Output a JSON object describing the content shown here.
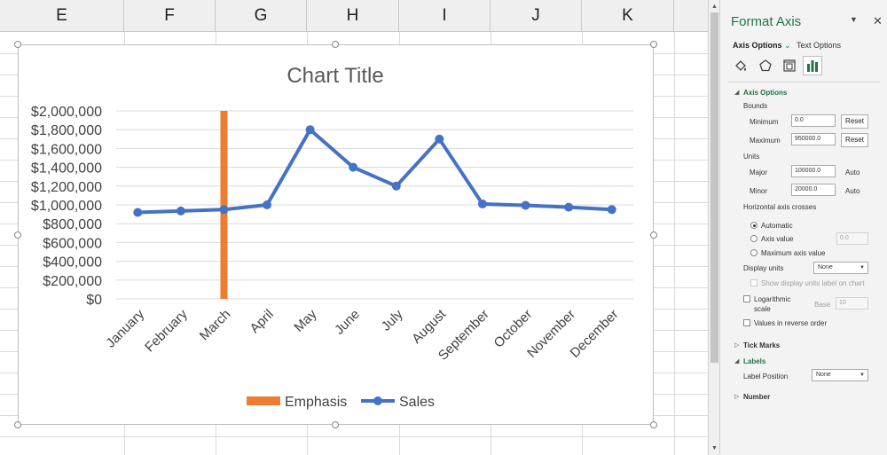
{
  "columns": [
    "E",
    "F",
    "G",
    "H",
    "I",
    "J",
    "K"
  ],
  "chart_data": {
    "type": "line",
    "title": "Chart Title",
    "categories": [
      "January",
      "February",
      "March",
      "April",
      "May",
      "June",
      "July",
      "August",
      "September",
      "October",
      "November",
      "December"
    ],
    "series": [
      {
        "name": "Sales",
        "kind": "line",
        "color": "#4472c4",
        "values": [
          920000,
          935000,
          950000,
          1000000,
          1800000,
          1400000,
          1200000,
          1700000,
          1010000,
          995000,
          975000,
          950000
        ]
      },
      {
        "name": "Emphasis",
        "kind": "bar",
        "color": "#ed7d31",
        "values": [
          0,
          0,
          2000000,
          0,
          0,
          0,
          0,
          0,
          0,
          0,
          0,
          0
        ]
      }
    ],
    "ylim": [
      0,
      2000000
    ],
    "y_tick_labels": [
      "$2,000,000",
      "$1,800,000",
      "$1,600,000",
      "$1,400,000",
      "$1,200,000",
      "$1,000,000",
      "$800,000",
      "$600,000",
      "$400,000",
      "$200,000",
      "$0"
    ],
    "legend": [
      "Emphasis",
      "Sales"
    ],
    "legend_position": "bottom",
    "grid": true
  },
  "pane": {
    "title": "Format Axis",
    "tab_axis": "Axis Options",
    "tab_text": "Text Options",
    "section_axis_options": "Axis Options",
    "bounds_label": "Bounds",
    "minimum_label": "Minimum",
    "minimum_value": "0.0",
    "maximum_label": "Maximum",
    "maximum_value": "950000.0",
    "reset_label": "Reset",
    "units_label": "Units",
    "major_label": "Major",
    "major_value": "100000.0",
    "minor_label": "Minor",
    "minor_value": "20000.0",
    "auto_label": "Auto",
    "h_axis_crosses_label": "Horizontal axis crosses",
    "opt_automatic": "Automatic",
    "opt_axis_value": "Axis value",
    "axis_value": "0.0",
    "opt_max_axis_value": "Maximum axis value",
    "display_units_label": "Display units",
    "display_units_value": "None",
    "show_units_label": "Show display units label on chart",
    "logarithmic_label": "Logarithmic",
    "scale_label": "scale",
    "base_label": "Base",
    "base_value": "10",
    "reverse_label": "Values in reverse order",
    "section_tick_marks": "Tick Marks",
    "section_labels": "Labels",
    "label_position_label": "Label Position",
    "label_position_value": "None",
    "section_number": "Number",
    "accent_color": "#217346"
  }
}
